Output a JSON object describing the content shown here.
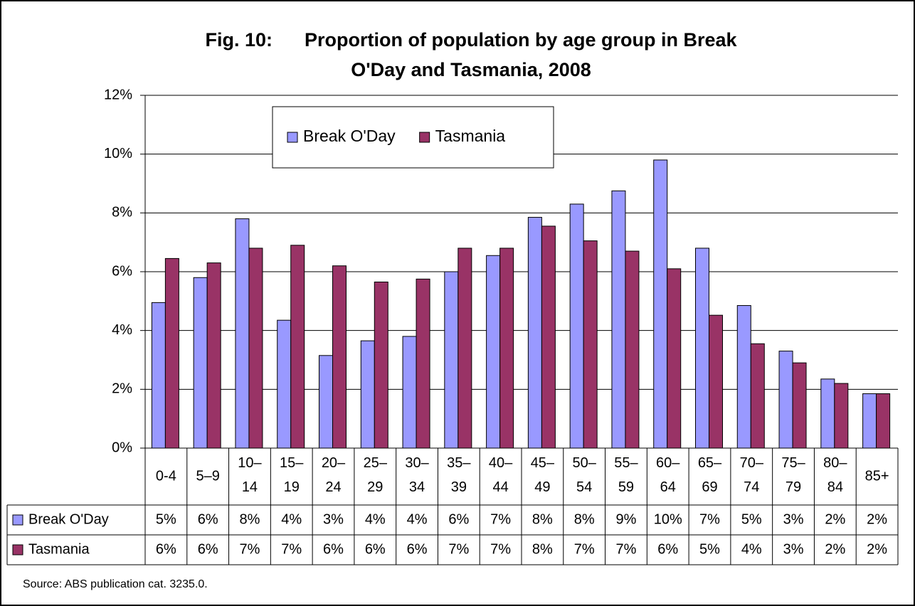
{
  "chart_data": {
    "type": "bar",
    "title_lines": [
      "Fig. 10:      Proportion of population by age group in Break",
      "O'Day and Tasmania, 2008"
    ],
    "categories": [
      "0-4",
      "5–9",
      "10–14",
      "15–19",
      "20–24",
      "25–29",
      "30–34",
      "35–39",
      "40–44",
      "45–49",
      "50–54",
      "55–59",
      "60–64",
      "65–69",
      "70–74",
      "75–79",
      "80–84",
      "85+"
    ],
    "series": [
      {
        "name": "Break O'Day",
        "color": "#9999ff",
        "values": [
          4.95,
          5.8,
          7.8,
          4.35,
          3.15,
          3.65,
          3.8,
          6.0,
          6.55,
          7.85,
          8.3,
          8.75,
          9.8,
          6.8,
          4.85,
          3.3,
          2.35,
          1.85
        ],
        "value_labels": [
          "5%",
          "6%",
          "8%",
          "4%",
          "3%",
          "4%",
          "4%",
          "6%",
          "7%",
          "8%",
          "8%",
          "9%",
          "10%",
          "7%",
          "5%",
          "3%",
          "2%",
          "2%"
        ]
      },
      {
        "name": "Tasmania",
        "color": "#993366",
        "values": [
          6.45,
          6.3,
          6.8,
          6.9,
          6.2,
          5.65,
          5.75,
          6.8,
          6.8,
          7.55,
          7.05,
          6.7,
          6.1,
          4.52,
          3.55,
          2.9,
          2.2,
          1.85
        ],
        "value_labels": [
          "6%",
          "6%",
          "7%",
          "7%",
          "6%",
          "6%",
          "6%",
          "7%",
          "7%",
          "8%",
          "7%",
          "7%",
          "6%",
          "5%",
          "4%",
          "3%",
          "2%",
          "2%"
        ]
      }
    ],
    "ylim": [
      0,
      12
    ],
    "yticks": [
      {
        "value": 0,
        "label": "0%"
      },
      {
        "value": 2,
        "label": "2%"
      },
      {
        "value": 4,
        "label": "4%"
      },
      {
        "value": 6,
        "label": "6%"
      },
      {
        "value": 8,
        "label": "8%"
      },
      {
        "value": 10,
        "label": "10%"
      },
      {
        "value": 12,
        "label": "12%"
      }
    ],
    "grid": true,
    "source": "Source: ABS publication cat. 3235.0."
  }
}
